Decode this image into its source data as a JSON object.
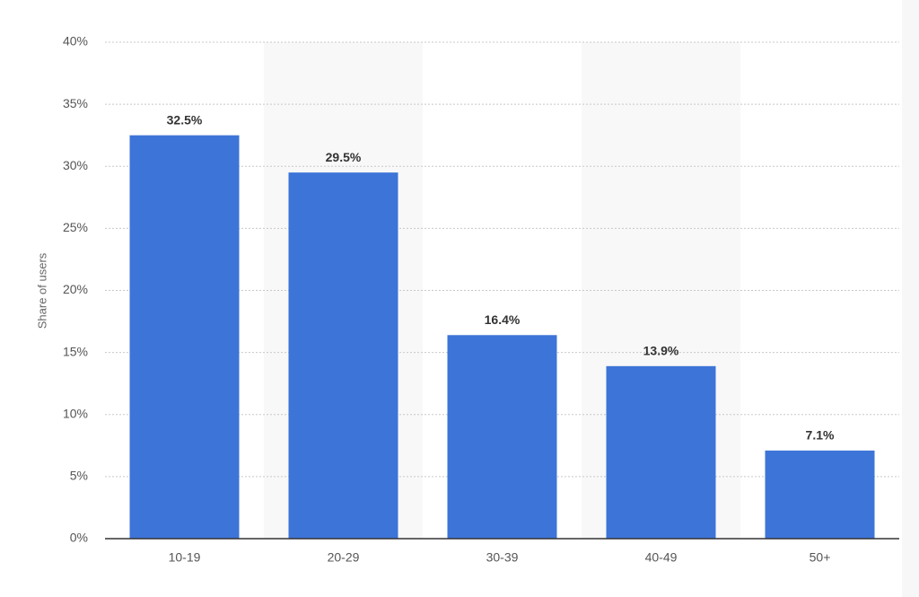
{
  "chart_data": {
    "type": "bar",
    "y_axis_label": "Share of users",
    "categories": [
      "10-19",
      "20-29",
      "30-39",
      "40-49",
      "50+"
    ],
    "values": [
      32.5,
      29.5,
      16.4,
      13.9,
      7.1
    ],
    "value_labels": [
      "32.5%",
      "29.5%",
      "16.4%",
      "13.9%",
      "7.1%"
    ],
    "color": "#3d74d8",
    "ylim": [
      0,
      40
    ],
    "yticks": [
      {
        "value": 0,
        "label": "0%"
      },
      {
        "value": 5,
        "label": "5%"
      },
      {
        "value": 10,
        "label": "10%"
      },
      {
        "value": 15,
        "label": "15%"
      },
      {
        "value": 20,
        "label": "20%"
      },
      {
        "value": 25,
        "label": "25%"
      },
      {
        "value": 30,
        "label": "30%"
      },
      {
        "value": 35,
        "label": "35%"
      },
      {
        "value": 40,
        "label": "40%"
      }
    ],
    "grid": true
  }
}
